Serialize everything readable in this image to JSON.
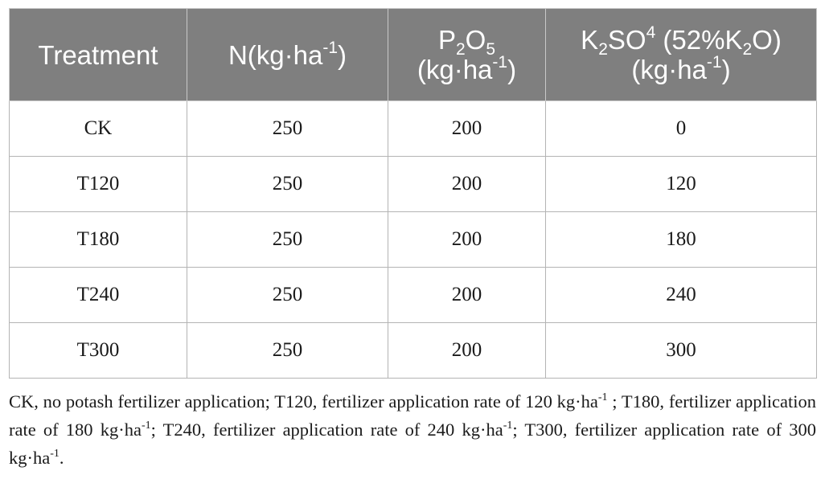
{
  "table": {
    "headers": {
      "treatment": "Treatment",
      "n": {
        "base": "N(kg·ha",
        "sup": "-1",
        "tail": ")"
      },
      "p": {
        "p": "P",
        "p_sub": "2",
        "o": "O",
        "o_sub": "5",
        "unit_base": "(kg·ha",
        "unit_sup": "-1",
        "unit_tail": ")"
      },
      "k": {
        "k": "K",
        "k_sub": "2",
        "so": "SO",
        "so_sup": "4",
        "pct_open": " (52%K",
        "pct_sub": "2",
        "pct_close": "O)",
        "unit_base": "(kg·ha",
        "unit_sup": "-1",
        "unit_tail": ")"
      }
    },
    "rows": [
      {
        "treatment": "CK",
        "n": "250",
        "p": "200",
        "k": "0"
      },
      {
        "treatment": "T120",
        "n": "250",
        "p": "200",
        "k": "120"
      },
      {
        "treatment": "T180",
        "n": "250",
        "p": "200",
        "k": "180"
      },
      {
        "treatment": "T240",
        "n": "250",
        "p": "200",
        "k": "240"
      },
      {
        "treatment": "T300",
        "n": "250",
        "p": "200",
        "k": "300"
      }
    ]
  },
  "footnote": {
    "seg1": "CK, no potash fertilizer application; T120, fertilizer application rate of 120 kg·ha",
    "sup1": "-1",
    "seg2": " ; T180, fertilizer application rate of 180 kg·ha",
    "sup2": "-1",
    "seg3": "; T240, fertilizer application rate of 240 kg·ha",
    "sup3": "-1",
    "seg4": "; T300, fertilizer application rate of 300 kg·ha",
    "sup4": "-1",
    "seg5": "."
  }
}
